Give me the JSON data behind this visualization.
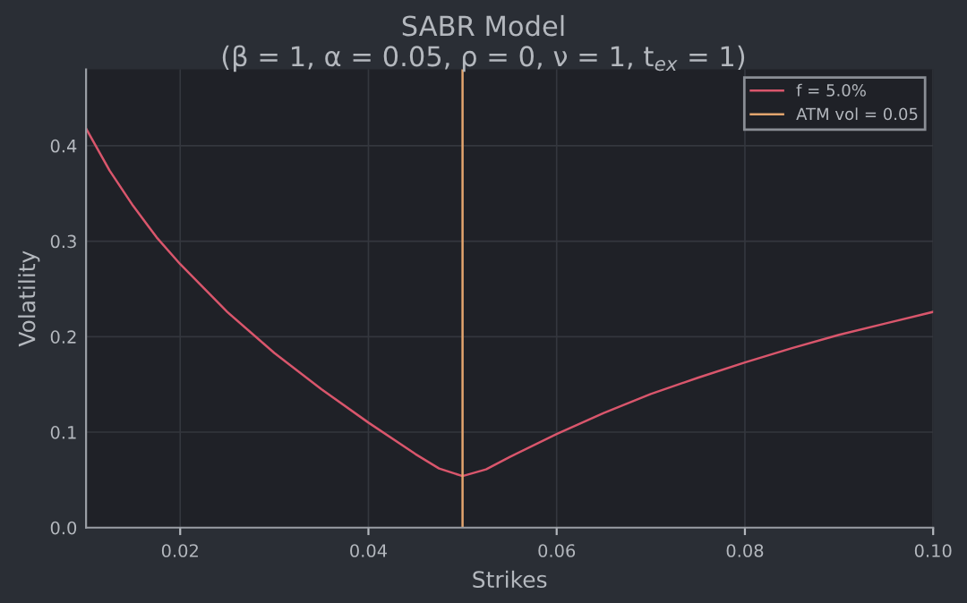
{
  "chart_data": {
    "type": "line",
    "title": "SABR Model",
    "subtitle": "(β = 1, α = 0.05, ρ = 0, ν = 1, t$_{ex}$ = 1)",
    "xlabel": "Strikes",
    "ylabel": "Volatility",
    "series": [
      {
        "name": "f = 5.0%",
        "color": "#d9566c",
        "x": [
          0.01,
          0.0125,
          0.015,
          0.0175,
          0.02,
          0.025,
          0.03,
          0.035,
          0.04,
          0.045,
          0.0475,
          0.05,
          0.0525,
          0.055,
          0.06,
          0.065,
          0.07,
          0.075,
          0.08,
          0.085,
          0.09,
          0.095,
          0.1
        ],
        "values": [
          0.418,
          0.374,
          0.337,
          0.304,
          0.276,
          0.226,
          0.183,
          0.145,
          0.11,
          0.077,
          0.062,
          0.054,
          0.061,
          0.074,
          0.098,
          0.12,
          0.14,
          0.157,
          0.173,
          0.188,
          0.202,
          0.214,
          0.226
        ]
      },
      {
        "name": "ATM vol = 0.05",
        "color": "#e3a56e",
        "x": [
          0.05,
          0.05
        ],
        "values": [
          0,
          0.48
        ]
      }
    ],
    "xlim": [
      0.01,
      0.1
    ],
    "ylim": [
      0,
      0.48
    ],
    "xticks": [
      0.02,
      0.04,
      0.06,
      0.08,
      {
        "value": 0.1,
        "label": "0.10"
      }
    ],
    "yticks": [
      {
        "value": 0,
        "label": "0.0"
      },
      0.1,
      0.2,
      0.3,
      0.4
    ],
    "grid": true,
    "legend": "top right"
  }
}
